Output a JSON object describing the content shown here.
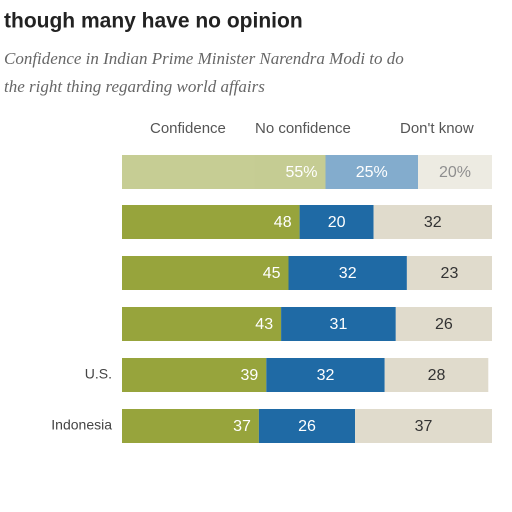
{
  "chart_data": {
    "type": "stacked-bar",
    "title": "though many have no opinion",
    "subtitle": "Confidence in Indian Prime Minister Narendra Modi to do the right thing regarding world affairs",
    "categories": [
      null,
      null,
      null,
      null,
      "U.S.",
      "Indonesia"
    ],
    "xlim": [
      0,
      100
    ],
    "series": [
      {
        "name": "Confidence",
        "color": "#97a43c",
        "values": [
          55,
          48,
          45,
          43,
          39,
          37
        ],
        "value_labels": [
          "55%",
          null,
          null,
          null,
          null,
          null
        ]
      },
      {
        "name": "No confidence",
        "color": "#1f6aa5",
        "values": [
          25,
          20,
          32,
          31,
          32,
          26
        ],
        "value_labels": [
          "25%",
          null,
          null,
          null,
          null,
          null
        ]
      },
      {
        "name": "Don't know",
        "color": "#e0dbcc",
        "values": [
          20,
          32,
          23,
          26,
          28,
          37
        ],
        "value_labels": [
          "20%",
          null,
          null,
          null,
          null,
          null
        ]
      }
    ]
  }
}
